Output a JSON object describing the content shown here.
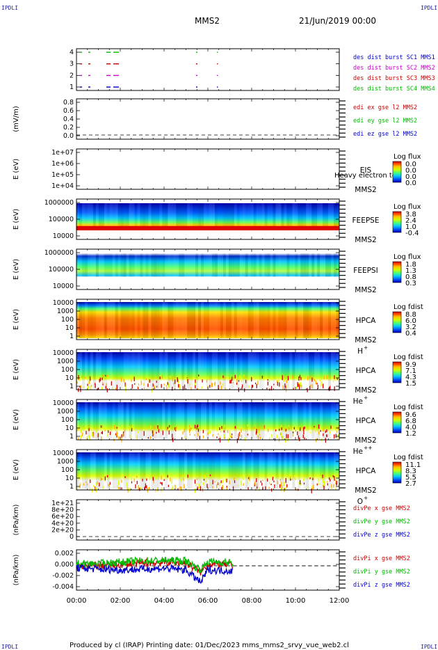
{
  "corner_labels": {
    "tl": "IPDLI",
    "tr": "IPDLI",
    "bl": "IPDLI",
    "br": "IPDLI"
  },
  "header": {
    "title": "MMS2",
    "date": "21/Jun/2019 00:00"
  },
  "footer": {
    "text": "Produced by cl (IRAP)   Printing date: 01/Dec/2023   mms_mms2_srvy_vue_web2.cl"
  },
  "time_axis": {
    "ticks": [
      "00:00",
      "02:00",
      "04:00",
      "06:00",
      "08:00",
      "10:00",
      "12:00"
    ]
  },
  "panels": [
    {
      "id": "dist-burst",
      "yticks": [
        "4",
        "3",
        "2",
        "1"
      ],
      "ylabel": "",
      "legend": [
        {
          "text": "des dist burst SC1 MMS1",
          "color": "#0000cc"
        },
        {
          "text": "des dist burst SC2 MMS2",
          "color": "#cc00cc"
        },
        {
          "text": "des dist burst SC3 MMS3",
          "color": "#cc0000"
        },
        {
          "text": "des dist burst SC4 MMS4",
          "color": "#00bb00"
        }
      ]
    },
    {
      "id": "edi",
      "yticks": [
        "0.8",
        "0.6",
        "0.4",
        "0.2",
        "0.0"
      ],
      "ylabel": "(mV/m)",
      "legend": [
        {
          "text": "edi ex gse l2 MMS2",
          "color": "#cc0000"
        },
        {
          "text": "edi ey gse l2 MMS2",
          "color": "#00bb00"
        },
        {
          "text": "edi ez gse l2 MMS2",
          "color": "#0000cc"
        }
      ]
    },
    {
      "id": "eis",
      "yticks": [
        "1e+07",
        "1e+06",
        "1e+05",
        "1e+04"
      ],
      "ylabel": "E (eV)",
      "side": [
        "EIS",
        "MMS2"
      ],
      "overlay": "Heavy electron to",
      "cbar_title": "Log flux",
      "cbar_ticks": [
        "0.0",
        "0.0",
        "0.0",
        "0.0"
      ]
    },
    {
      "id": "feepse",
      "yticks": [
        "1000000",
        "100000",
        "10000"
      ],
      "ylabel": "E (eV)",
      "side": [
        "FEEPSE",
        "MMS2"
      ],
      "cbar_title": "Log flux",
      "cbar_ticks": [
        "3.8",
        "2.4",
        "1.0",
        "-0.4"
      ]
    },
    {
      "id": "feepsi",
      "yticks": [
        "1000000",
        "100000",
        "10000"
      ],
      "ylabel": "E (eV)",
      "side": [
        "FEEPSI",
        "MMS2"
      ],
      "cbar_title": "Log flux",
      "cbar_ticks": [
        "1.8",
        "1.3",
        "0.8",
        "0.3"
      ]
    },
    {
      "id": "hpca-h",
      "yticks": [
        "10000",
        "1000",
        "100",
        "10",
        "1"
      ],
      "ylabel": "E (eV)",
      "side": [
        "HPCA",
        "MMS2"
      ],
      "species": "H",
      "sup": "+",
      "cbar_title": "Log fdist",
      "cbar_ticks": [
        "8.8",
        "6.0",
        "3.2",
        "0.4"
      ]
    },
    {
      "id": "hpca-he",
      "yticks": [
        "10000",
        "1000",
        "100",
        "10",
        "1"
      ],
      "ylabel": "E (eV)",
      "side": [
        "HPCA",
        "MMS2"
      ],
      "species": "He",
      "sup": "+",
      "cbar_title": "Log fdist",
      "cbar_ticks": [
        "9.9",
        "7.1",
        "4.3",
        "1.5"
      ]
    },
    {
      "id": "hpca-hepp",
      "yticks": [
        "10000",
        "1000",
        "100",
        "10",
        "1"
      ],
      "ylabel": "E (eV)",
      "side": [
        "HPCA",
        "MMS2"
      ],
      "species": "He",
      "sup": "++",
      "cbar_title": "Log fdist",
      "cbar_ticks": [
        "9.6",
        "6.8",
        "4.0",
        "1.2"
      ]
    },
    {
      "id": "hpca-o",
      "yticks": [
        "10000",
        "1000",
        "100",
        "10",
        "1"
      ],
      "ylabel": "E (eV)",
      "side": [
        "HPCA",
        "MMS2"
      ],
      "species": "O",
      "sup": "+",
      "cbar_title": "Log fdist",
      "cbar_ticks": [
        "11.1",
        "8.3",
        "5.5",
        "2.7"
      ]
    },
    {
      "id": "divpe",
      "yticks": [
        "1e+21",
        "8e+20",
        "6e+20",
        "4e+20",
        "2e+20",
        "0"
      ],
      "ylabel": "(nPa/km)",
      "legend": [
        {
          "text": "divPe x gse MMS2",
          "color": "#cc0000"
        },
        {
          "text": "divPe y gse MMS2",
          "color": "#00bb00"
        },
        {
          "text": "divPe z gse MMS2",
          "color": "#0000cc"
        }
      ]
    },
    {
      "id": "divpi",
      "yticks": [
        "0.002",
        "0.000",
        "-0.002",
        "-0.004"
      ],
      "ylabel": "(nPa/km)",
      "legend": [
        {
          "text": "divPi x gse MMS2",
          "color": "#cc0000"
        },
        {
          "text": "divPi y gse MMS2",
          "color": "#00bb00"
        },
        {
          "text": "divPi z gse MMS2",
          "color": "#0000cc"
        }
      ]
    }
  ],
  "chart_data": {
    "type": "heatmap",
    "title": "MMS2",
    "xlabel": "",
    "x_range": [
      "00:00",
      "12:00"
    ],
    "data_end": "07:10",
    "grid": false,
    "colormap": [
      "#0000b4",
      "#0050ff",
      "#00c8ff",
      "#40ff80",
      "#c8ff00",
      "#ffc800",
      "#ff4000",
      "#c80000"
    ],
    "burst_intervals": [
      {
        "sc": "MMS1",
        "row": 1,
        "start": "00:00",
        "end": "01:45"
      },
      {
        "sc": "MMS2",
        "row": 2,
        "start": "00:00",
        "end": "01:45"
      },
      {
        "sc": "MMS3",
        "row": 3,
        "start": "00:00",
        "end": "01:45"
      },
      {
        "sc": "MMS4",
        "row": 4,
        "start": "00:00",
        "end": "01:45"
      }
    ],
    "divpi_series": [
      {
        "name": "divPi x gse MMS2",
        "x": [
          "00:00",
          "01:00",
          "02:00",
          "03:00",
          "04:00",
          "05:00",
          "05:40",
          "06:00",
          "07:00",
          "07:10"
        ],
        "y": [
          0.0,
          0.0,
          0.0003,
          0.0006,
          0.0008,
          0.0007,
          -0.0015,
          0.0004,
          0.0003,
          -0.0005
        ]
      },
      {
        "name": "divPi y gse MMS2",
        "x": [
          "00:00",
          "01:00",
          "02:00",
          "03:00",
          "04:00",
          "05:00",
          "05:40",
          "06:00",
          "07:00",
          "07:10"
        ],
        "y": [
          0.0005,
          0.0005,
          0.0009,
          0.0012,
          0.0013,
          0.0012,
          -0.001,
          0.001,
          0.0008,
          0.0002
        ]
      },
      {
        "name": "divPi z gse MMS2",
        "x": [
          "00:00",
          "01:00",
          "02:00",
          "03:00",
          "04:00",
          "05:00",
          "05:40",
          "06:00",
          "07:00",
          "07:10"
        ],
        "y": [
          -0.0005,
          -0.0008,
          -0.001,
          -0.0008,
          -0.0006,
          -0.001,
          -0.004,
          -0.001,
          -0.0012,
          -0.0015
        ]
      }
    ]
  }
}
